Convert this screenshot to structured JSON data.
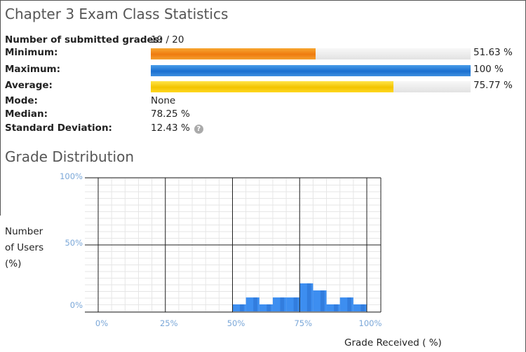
{
  "page": {
    "title": "Chapter 3 Exam Class Statistics"
  },
  "stats": {
    "submitted": {
      "label": "Number of submitted grades:",
      "value": "19 / 20"
    },
    "minimum": {
      "label": "Minimum:",
      "value": "51.63 %",
      "fraction": 0.5163,
      "color": "#ef7b10"
    },
    "maximum": {
      "label": "Maximum:",
      "value": "100 %",
      "fraction": 1.0,
      "color": "#1a6fd0"
    },
    "average": {
      "label": "Average:",
      "value": "75.77 %",
      "fraction": 0.7577,
      "color": "#f3c400"
    },
    "mode": {
      "label": "Mode:",
      "value": "None"
    },
    "median": {
      "label": "Median:",
      "value": "78.25 %"
    },
    "std_dev": {
      "label": "Standard Deviation:",
      "value": "12.43 %",
      "help_icon": "help-icon"
    }
  },
  "distribution": {
    "title": "Grade Distribution",
    "ylabel": [
      "Number",
      "of Users",
      "(%)"
    ],
    "xlabel": "Grade Received ( %)"
  },
  "chart_data": {
    "type": "bar",
    "xlabel": "Grade Received ( %)",
    "ylabel": "Number of Users (%)",
    "xlim": [
      0,
      100
    ],
    "ylim": [
      0,
      100
    ],
    "x_ticks": [
      "0%",
      "25%",
      "50%",
      "75%",
      "100%"
    ],
    "y_ticks": [
      "0%",
      "50%",
      "100%"
    ],
    "bin_width": 5,
    "bins": [
      {
        "start": 50,
        "end": 55,
        "value": 5.3
      },
      {
        "start": 55,
        "end": 60,
        "value": 10.5
      },
      {
        "start": 60,
        "end": 65,
        "value": 5.3
      },
      {
        "start": 65,
        "end": 70,
        "value": 10.5
      },
      {
        "start": 70,
        "end": 75,
        "value": 10.5
      },
      {
        "start": 75,
        "end": 80,
        "value": 21.1
      },
      {
        "start": 80,
        "end": 85,
        "value": 15.8
      },
      {
        "start": 85,
        "end": 90,
        "value": 5.3
      },
      {
        "start": 90,
        "end": 95,
        "value": 10.5
      },
      {
        "start": 95,
        "end": 100,
        "value": 5.3
      }
    ],
    "bar_color": "#3d8ef0",
    "grid": true
  }
}
